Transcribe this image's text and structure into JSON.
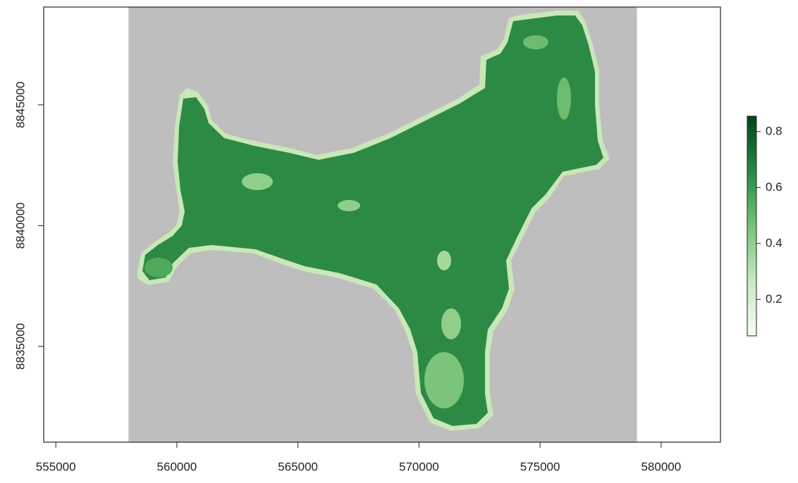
{
  "chart_data": {
    "type": "raster",
    "xlim": [
      554500,
      582450
    ],
    "ylim": [
      8831035,
      8849050
    ],
    "xticks": [
      555000,
      560000,
      565000,
      570000,
      575000,
      580000
    ],
    "yticks": [
      8835000,
      8840000,
      8845000
    ],
    "raster_xlim": [
      558000,
      579000
    ],
    "background_color": "#bebebe",
    "legend": {
      "zlim": [
        0.07,
        0.855
      ],
      "ticks": [
        0.2,
        0.4,
        0.6,
        0.8
      ],
      "colors": [
        "#f7fcf5",
        "#c7e9c0",
        "#74c476",
        "#238b45",
        "#00441b"
      ]
    }
  }
}
